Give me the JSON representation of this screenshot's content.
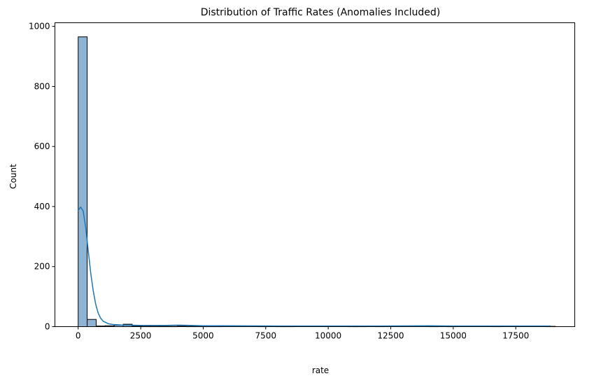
{
  "chart_data": {
    "type": "bar",
    "title": "Distribution of Traffic Rates (Anomalies Included)",
    "xlabel": "rate",
    "ylabel": "Count",
    "xlim": [
      -930,
      19860
    ],
    "ylim": [
      0,
      1012
    ],
    "x_ticks": [
      {
        "value": 0,
        "label": "0"
      },
      {
        "value": 2500,
        "label": "2500"
      },
      {
        "value": 5000,
        "label": "5000"
      },
      {
        "value": 7500,
        "label": "7500"
      },
      {
        "value": 10000,
        "label": "10000"
      },
      {
        "value": 12500,
        "label": "12500"
      },
      {
        "value": 15000,
        "label": "15000"
      },
      {
        "value": 17500,
        "label": "17500"
      }
    ],
    "y_ticks": [
      {
        "value": 0,
        "label": "0"
      },
      {
        "value": 200,
        "label": "200"
      },
      {
        "value": 400,
        "label": "400"
      },
      {
        "value": 600,
        "label": "600"
      },
      {
        "value": 800,
        "label": "800"
      },
      {
        "value": 1000,
        "label": "1000"
      }
    ],
    "bins": {
      "start": 0,
      "width": 360,
      "counts": [
        965,
        24,
        2,
        3,
        5,
        8,
        2,
        1,
        1,
        1,
        1,
        2,
        1,
        1,
        1,
        1,
        0,
        0,
        0,
        0,
        1,
        0,
        1,
        1,
        0,
        0,
        0,
        0,
        0,
        0,
        1,
        1,
        0,
        1,
        0,
        0,
        0,
        0,
        0,
        1,
        2,
        1,
        0,
        0,
        0,
        0,
        1,
        0,
        0,
        0,
        0,
        0,
        1
      ]
    },
    "kde": {
      "name": "kde",
      "x": [
        -20,
        100,
        200,
        300,
        400,
        500,
        600,
        700,
        800,
        900,
        1000,
        1200,
        1400,
        1600,
        1800,
        2000,
        2500,
        3000,
        3500,
        4000,
        4500,
        5000,
        6000,
        8000,
        10000,
        12000,
        14000,
        15000,
        16000,
        18000,
        18900
      ],
      "y": [
        385,
        398,
        385,
        330,
        255,
        180,
        120,
        75,
        45,
        28,
        18,
        10,
        7,
        6,
        5,
        5,
        4,
        4,
        4,
        5,
        4,
        3,
        3,
        2,
        2,
        2,
        3,
        2,
        2,
        2,
        2
      ]
    },
    "grid": false,
    "colors": {
      "bar_fill": "#8eb4d5",
      "bar_edge": "#000000",
      "kde_line": "#1f77b4",
      "axes": "#000000"
    }
  }
}
